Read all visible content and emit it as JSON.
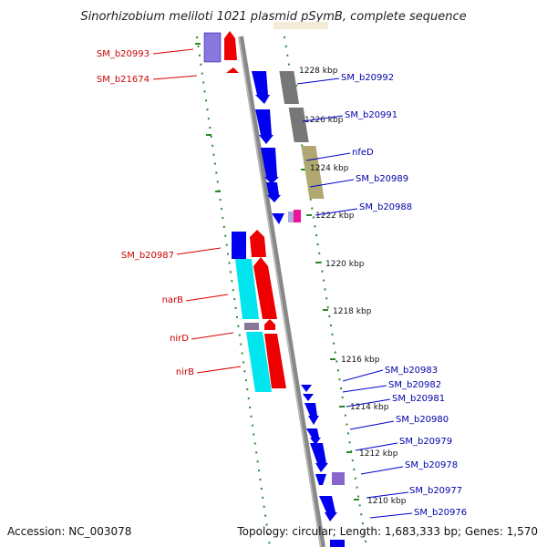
{
  "title": "Sinorhizobium meliloti 1021 plasmid pSymB, complete sequence",
  "footer": {
    "accession": "Accession: NC_003078",
    "summary": "Topology: circular; Length: 1,683,333 bp; Genes: 1,570"
  },
  "colors": {
    "forward_cds": "#0000ee",
    "reverse_cds": "#ee0000",
    "backbone": "#888888",
    "ring_dots": "#2a8a2a",
    "left_label": "#cc0000",
    "right_label": "#0000aa",
    "leader_left": "#dd0000",
    "leader_right": "#0000cc",
    "cyan_feature": "#00e5ee",
    "gray_feature": "#777777",
    "olive_feature": "#b0a870",
    "purple_feature": "#8866cc",
    "magenta_feature": "#ee1199"
  },
  "ticks": [
    "1228 kbp",
    "1226 kbp",
    "1224 kbp",
    "1222 kbp",
    "1220 kbp",
    "1218 kbp",
    "1216 kbp",
    "1214 kbp",
    "1212 kbp",
    "1210 kbp"
  ],
  "left_labels": [
    "SM_b20993",
    "SM_b21674",
    "SM_b20987",
    "narB",
    "nirD",
    "nirB"
  ],
  "right_labels": [
    "SM_b20992",
    "SM_b20991",
    "nfeD",
    "SM_b20989",
    "SM_b20988",
    "SM_b20983",
    "SM_b20982",
    "SM_b20981",
    "SM_b20980",
    "SM_b20979",
    "SM_b20978",
    "SM_b20977",
    "SM_b20976"
  ]
}
